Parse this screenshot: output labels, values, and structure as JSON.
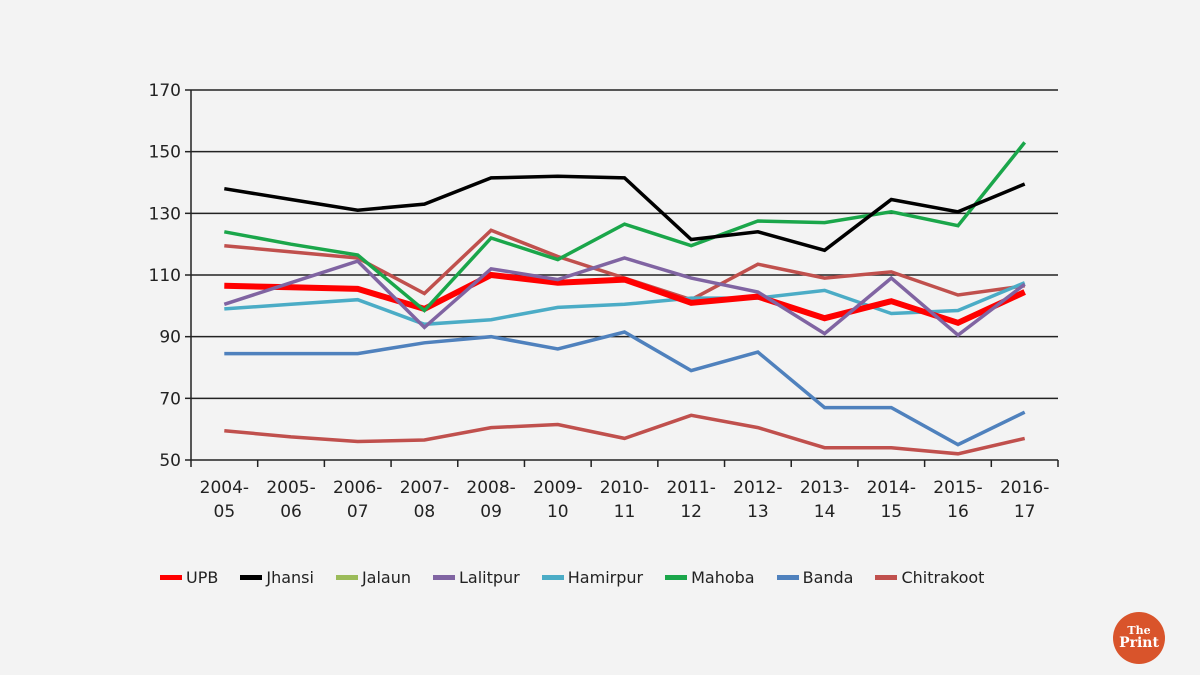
{
  "chart_data": {
    "type": "line",
    "title": "",
    "xlabel": "",
    "ylabel": "",
    "ylim": [
      50,
      170
    ],
    "yticks": [
      "50",
      "70",
      "90",
      "110",
      "130",
      "150",
      "170"
    ],
    "grid": true,
    "legend_position": "bottom",
    "categories": [
      [
        "2004-",
        "05"
      ],
      [
        "2005-",
        "06"
      ],
      [
        "2006-",
        "07"
      ],
      [
        "2007-",
        "08"
      ],
      [
        "2008-",
        "09"
      ],
      [
        "2009-",
        "10"
      ],
      [
        "2010-",
        "11"
      ],
      [
        "2011-",
        "12"
      ],
      [
        "2012-",
        "13"
      ],
      [
        "2013-",
        "14"
      ],
      [
        "2014-",
        "15"
      ],
      [
        "2015-",
        "16"
      ],
      [
        "2016-",
        "17"
      ]
    ],
    "legend": [
      {
        "name": "UPB",
        "color": "#ff0000"
      },
      {
        "name": "Jhansi",
        "color": "#000000"
      },
      {
        "name": "Jalaun",
        "color": "#9bbb59"
      },
      {
        "name": "Lalitpur",
        "color": "#8064a2"
      },
      {
        "name": "Hamirpur",
        "color": "#4bacc6"
      },
      {
        "name": "Mahoba",
        "color": "#1aa64a"
      },
      {
        "name": "Banda",
        "color": "#4f81bd"
      },
      {
        "name": "Chitrakoot",
        "color": "#c0504d"
      }
    ],
    "series": [
      {
        "name": "Chitrakoot (upper)",
        "color": "#c0504d",
        "width": 3.5,
        "values": [
          119.5,
          117.5,
          115.5,
          104,
          124.5,
          116,
          109,
          102,
          113.5,
          109,
          111,
          103.5,
          106.5
        ]
      },
      {
        "name": "Hamirpur",
        "color": "#4bacc6",
        "width": 3.5,
        "values": [
          99,
          100.5,
          102,
          94,
          95.5,
          99.5,
          100.5,
          102.5,
          102.5,
          105,
          97.5,
          98.5,
          107.5
        ]
      },
      {
        "name": "UPB",
        "color": "#ff0000",
        "width": 6,
        "values": [
          106.5,
          106,
          105.5,
          99,
          110,
          107.5,
          108.5,
          101,
          103,
          96,
          101.5,
          94.5,
          104.5
        ]
      },
      {
        "name": "Lalitpur",
        "color": "#8064a2",
        "width": 3.5,
        "values": [
          100.5,
          107.5,
          114.5,
          93,
          112,
          108.5,
          115.5,
          109,
          104.5,
          91,
          109,
          90.5,
          107
        ]
      },
      {
        "name": "Banda",
        "color": "#4f81bd",
        "width": 3.5,
        "values": [
          84.5,
          84.5,
          84.5,
          88,
          90,
          86,
          91.5,
          79,
          85,
          67,
          67,
          55,
          65.5
        ]
      },
      {
        "name": "Chitrakoot",
        "color": "#c0504d",
        "width": 3.5,
        "values": [
          59.5,
          57.5,
          56,
          56.5,
          60.5,
          61.5,
          57,
          64.5,
          60.5,
          54,
          54,
          52,
          57
        ]
      },
      {
        "name": "Mahoba",
        "color": "#1aa64a",
        "width": 3.5,
        "values": [
          124,
          120,
          116.5,
          98.5,
          122,
          115,
          126.5,
          119.5,
          127.5,
          127,
          130.5,
          126,
          153
        ]
      },
      {
        "name": "Jhansi",
        "color": "#000000",
        "width": 3.5,
        "values": [
          138,
          134.5,
          131,
          133,
          141.5,
          142,
          141.5,
          121.5,
          124,
          118,
          134.5,
          130.5,
          139.5
        ]
      }
    ]
  },
  "logo": {
    "line1": "The",
    "line2": "Print"
  }
}
